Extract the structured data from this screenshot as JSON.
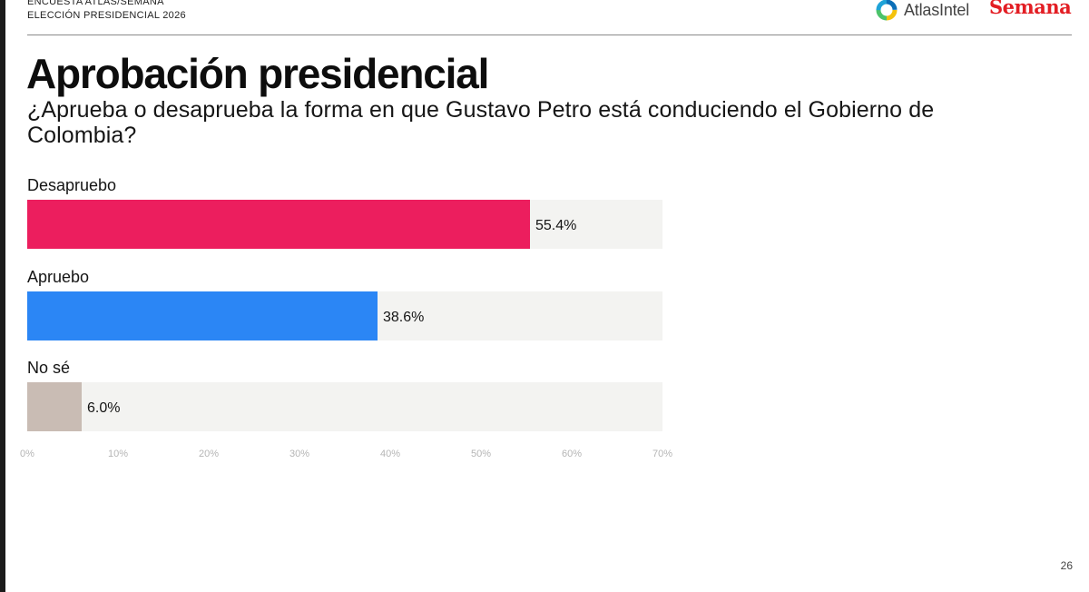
{
  "header": {
    "kicker_line1": "ENCUESTA ATLAS/SEMANA",
    "kicker_line2": "ELECCIÓN PRESIDENCIAL 2026",
    "atlas_logo_text": "AtlasIntel",
    "semana_logo_text": "Semana"
  },
  "title": "Aprobación presidencial",
  "question": "¿Aprueba o desaprueba la forma en que Gustavo Petro está conduciendo el Gobierno de Colombia?",
  "page_number": "26",
  "colors": {
    "track": "#f3f3f1",
    "desapruebo": "#ec1e5e",
    "apruebo": "#2b86f5",
    "no_se": "#c9bcb4",
    "semana_red": "#e31e24"
  },
  "chart_data": {
    "type": "bar",
    "orientation": "horizontal",
    "categories": [
      "Desapruebo",
      "Apruebo",
      "No sé"
    ],
    "values": [
      55.4,
      38.6,
      6.0
    ],
    "value_labels": [
      "55.4%",
      "38.6%",
      "6.0%"
    ],
    "bar_colors": [
      "#ec1e5e",
      "#2b86f5",
      "#c9bcb4"
    ],
    "xlim": [
      0,
      70
    ],
    "xticks": [
      0,
      10,
      20,
      30,
      40,
      50,
      60,
      70
    ],
    "xtick_labels": [
      "0%",
      "10%",
      "20%",
      "30%",
      "40%",
      "50%",
      "60%",
      "70%"
    ],
    "grid": false,
    "legend": "none"
  }
}
